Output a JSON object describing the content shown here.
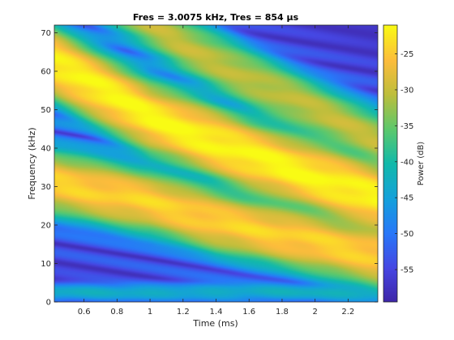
{
  "chart_data": {
    "type": "heatmap",
    "title": "Fres = 3.0075 kHz, Tres = 854 µs",
    "xlabel": "Time (ms)",
    "ylabel": "Frequency (kHz)",
    "colorbar_label": "Power (dB)",
    "xlim": [
      0.42,
      2.38
    ],
    "ylim": [
      0,
      72
    ],
    "clim": [
      -59.5,
      -21
    ],
    "x_ticks": [
      0.6,
      0.8,
      1,
      1.2,
      1.4,
      1.6,
      1.8,
      2,
      2.2
    ],
    "x_tick_labels": [
      "0.6",
      "0.8",
      "1",
      "1.2",
      "1.4",
      "1.6",
      "1.8",
      "2",
      "2.2"
    ],
    "y_ticks": [
      0,
      10,
      20,
      30,
      40,
      50,
      60,
      70
    ],
    "y_tick_labels": [
      "0",
      "10",
      "20",
      "30",
      "40",
      "50",
      "60",
      "70"
    ],
    "colorbar_ticks": [
      -25,
      -30,
      -35,
      -40,
      -45,
      -50,
      -55
    ],
    "colorbar_tick_labels": [
      "-25",
      "-30",
      "-35",
      "-40",
      "-45",
      "-50",
      "-55"
    ],
    "colormap": "parula",
    "floor_db": -58,
    "components": [
      {
        "description": "fundamental sweep",
        "t": [
          0.42,
          1.0,
          1.4,
          2.38
        ],
        "f": [
          31,
          26,
          21,
          12
        ],
        "peak_db": -25,
        "width_khz": 3.2
      },
      {
        "description": "2nd harmonic sweep",
        "t": [
          0.42,
          1.0,
          1.6,
          2.1,
          2.38
        ],
        "f": [
          62,
          48,
          38,
          31,
          27
        ],
        "peak_db": -22,
        "width_khz": 3.5
      },
      {
        "description": "3rd harmonic sweep",
        "t": [
          0.42,
          1.2,
          1.6,
          2.38
        ],
        "f": [
          89,
          67,
          58,
          42
        ],
        "peak_db": -31,
        "width_khz": 3.3
      },
      {
        "description": "low band near zero",
        "t": [
          0.42,
          2.38
        ],
        "f": [
          2.5,
          2.5
        ],
        "peak_db": -44,
        "width_khz": 1.2
      }
    ]
  }
}
